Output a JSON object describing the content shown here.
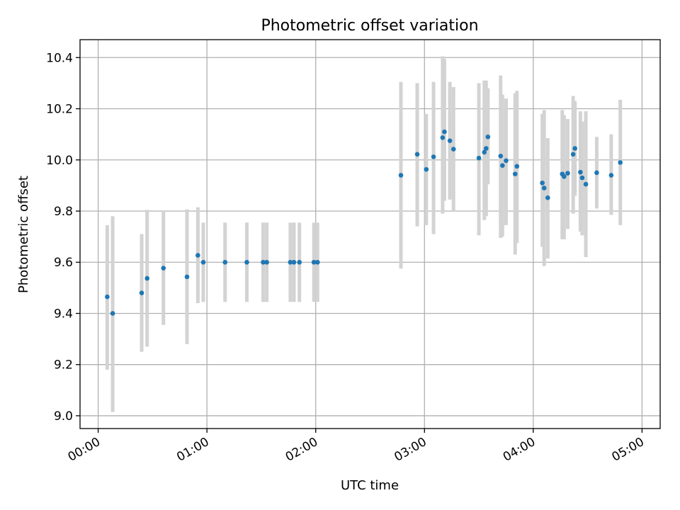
{
  "chart_data": {
    "type": "scatter",
    "title": "Photometric offset variation",
    "xlabel": "UTC time",
    "ylabel": "Photometric offset",
    "x_unit": "minutes after 00:00 UTC",
    "xlim": [
      -10,
      310
    ],
    "ylim": [
      8.95,
      10.47
    ],
    "x_ticks": [
      0,
      60,
      120,
      180,
      240,
      300
    ],
    "x_tick_labels": [
      "00:00",
      "01:00",
      "02:00",
      "03:00",
      "04:00",
      "05:00"
    ],
    "y_ticks": [
      9.0,
      9.2,
      9.4,
      9.6,
      9.8,
      10.0,
      10.2,
      10.4
    ],
    "y_tick_labels": [
      "9.0",
      "9.2",
      "9.4",
      "9.6",
      "9.8",
      "10.0",
      "10.2",
      "10.4"
    ],
    "grid": true,
    "colors": {
      "points": "#1f77b4",
      "error_bars": "#d3d3d3",
      "grid": "#b0b0b0"
    },
    "series": [
      {
        "points": [
          {
            "x": 5,
            "y": 9.465,
            "lo": 9.18,
            "hi": 9.745
          },
          {
            "x": 8,
            "y": 9.4,
            "lo": 9.015,
            "hi": 9.78
          },
          {
            "x": 24,
            "y": 9.48,
            "lo": 9.25,
            "hi": 9.71
          },
          {
            "x": 27,
            "y": 9.537,
            "lo": 9.27,
            "hi": 9.805
          },
          {
            "x": 36,
            "y": 9.577,
            "lo": 9.355,
            "hi": 9.8
          },
          {
            "x": 49,
            "y": 9.543,
            "lo": 9.28,
            "hi": 9.807
          },
          {
            "x": 55,
            "y": 9.627,
            "lo": 9.44,
            "hi": 9.815
          },
          {
            "x": 58,
            "y": 9.6,
            "lo": 9.445,
            "hi": 9.755
          },
          {
            "x": 70,
            "y": 9.6,
            "lo": 9.445,
            "hi": 9.755
          },
          {
            "x": 82,
            "y": 9.6,
            "lo": 9.445,
            "hi": 9.755
          },
          {
            "x": 91,
            "y": 9.6,
            "lo": 9.445,
            "hi": 9.755
          },
          {
            "x": 93,
            "y": 9.6,
            "lo": 9.445,
            "hi": 9.755
          },
          {
            "x": 106,
            "y": 9.6,
            "lo": 9.445,
            "hi": 9.755
          },
          {
            "x": 108,
            "y": 9.6,
            "lo": 9.445,
            "hi": 9.755
          },
          {
            "x": 111,
            "y": 9.6,
            "lo": 9.445,
            "hi": 9.755
          },
          {
            "x": 119,
            "y": 9.6,
            "lo": 9.445,
            "hi": 9.755
          },
          {
            "x": 121,
            "y": 9.6,
            "lo": 9.445,
            "hi": 9.755
          },
          {
            "x": 167,
            "y": 9.94,
            "lo": 9.575,
            "hi": 10.305
          },
          {
            "x": 176,
            "y": 10.022,
            "lo": 9.74,
            "hi": 10.3
          },
          {
            "x": 181,
            "y": 9.963,
            "lo": 9.745,
            "hi": 10.18
          },
          {
            "x": 185,
            "y": 10.012,
            "lo": 9.71,
            "hi": 10.305
          },
          {
            "x": 190,
            "y": 10.087,
            "lo": 9.79,
            "hi": 10.405
          },
          {
            "x": 191,
            "y": 10.11,
            "lo": 9.84,
            "hi": 10.395
          },
          {
            "x": 194,
            "y": 10.075,
            "lo": 9.845,
            "hi": 10.305
          },
          {
            "x": 196,
            "y": 10.042,
            "lo": 9.8,
            "hi": 10.285
          },
          {
            "x": 210,
            "y": 10.007,
            "lo": 9.705,
            "hi": 10.3
          },
          {
            "x": 213,
            "y": 10.03,
            "lo": 9.765,
            "hi": 10.31
          },
          {
            "x": 214,
            "y": 10.045,
            "lo": 9.78,
            "hi": 10.31
          },
          {
            "x": 215,
            "y": 10.09,
            "lo": 9.905,
            "hi": 10.28
          },
          {
            "x": 222,
            "y": 10.015,
            "lo": 9.695,
            "hi": 10.33
          },
          {
            "x": 223,
            "y": 9.978,
            "lo": 9.7,
            "hi": 10.255
          },
          {
            "x": 225,
            "y": 9.997,
            "lo": 9.745,
            "hi": 10.24
          },
          {
            "x": 230,
            "y": 9.945,
            "lo": 9.63,
            "hi": 10.26
          },
          {
            "x": 231,
            "y": 9.975,
            "lo": 9.675,
            "hi": 10.27
          },
          {
            "x": 245,
            "y": 9.91,
            "lo": 9.66,
            "hi": 10.18
          },
          {
            "x": 246,
            "y": 9.89,
            "lo": 9.585,
            "hi": 10.195
          },
          {
            "x": 248,
            "y": 9.852,
            "lo": 9.615,
            "hi": 10.085
          },
          {
            "x": 256,
            "y": 9.945,
            "lo": 9.69,
            "hi": 10.195
          },
          {
            "x": 257,
            "y": 9.935,
            "lo": 9.69,
            "hi": 10.175
          },
          {
            "x": 259,
            "y": 9.948,
            "lo": 9.73,
            "hi": 10.16
          },
          {
            "x": 262,
            "y": 10.022,
            "lo": 9.79,
            "hi": 10.25
          },
          {
            "x": 263,
            "y": 10.045,
            "lo": 9.86,
            "hi": 10.23
          },
          {
            "x": 266,
            "y": 9.952,
            "lo": 9.72,
            "hi": 10.19
          },
          {
            "x": 267,
            "y": 9.93,
            "lo": 9.705,
            "hi": 10.15
          },
          {
            "x": 269,
            "y": 9.905,
            "lo": 9.62,
            "hi": 10.19
          },
          {
            "x": 275,
            "y": 9.95,
            "lo": 9.81,
            "hi": 10.09
          },
          {
            "x": 283,
            "y": 9.94,
            "lo": 9.785,
            "hi": 10.1
          },
          {
            "x": 288,
            "y": 9.99,
            "lo": 9.745,
            "hi": 10.235
          }
        ]
      }
    ]
  }
}
